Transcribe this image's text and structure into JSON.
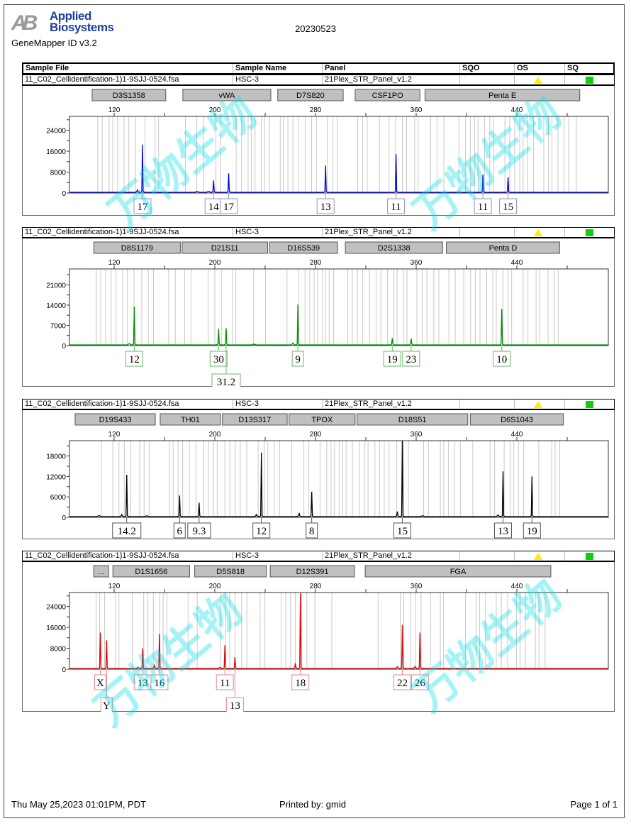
{
  "header": {
    "logo_mark": "AB",
    "logo_line1": "Applied",
    "logo_line2": "Biosystems",
    "product": "GeneMapper ID v3.2",
    "run_name": "20230523"
  },
  "table": {
    "columns": [
      "Sample File",
      "Sample Name",
      "Panel",
      "SQO",
      "OS",
      "SQ"
    ]
  },
  "sample": {
    "file": "11_C02_Cellidentification-1)1-9SJJ-0524.fsa",
    "name": "HSC-3",
    "panel": "21Plex_STR_Panel_v1.2",
    "os_status": "warning",
    "sq_status": "pass"
  },
  "watermark": "万物生物",
  "footer": {
    "printed_at": "Thu May 25,2023 01:01PM, PDT",
    "printed_by": "Printed by: gmid",
    "page": "Page 1 of 1"
  },
  "colors": {
    "blue": "#0000cc",
    "green": "#008c00",
    "black": "#000000",
    "red": "#e00000",
    "os_warning": "#ffee00",
    "sq_pass": "#11cc11"
  },
  "chart_data": [
    {
      "type": "line",
      "dye": "blue",
      "color": "#0000cc",
      "box_color": "#8f8fd8",
      "x_range": [
        84.5,
        512.7
      ],
      "x_ticks": [
        120,
        200,
        280,
        360,
        440
      ],
      "y_max": 29300,
      "y_ticks": [
        0,
        8000,
        16000,
        24000
      ],
      "markers": [
        {
          "name": "D3S1358",
          "range": [
            102.5,
            161
          ]
        },
        {
          "name": "vWA",
          "range": [
            174.6,
            244.5
          ]
        },
        {
          "name": "D7S820",
          "range": [
            250,
            302
          ]
        },
        {
          "name": "CSF1PO",
          "range": [
            311.5,
            363
          ]
        },
        {
          "name": "Penta E",
          "range": [
            367,
            490
          ]
        }
      ],
      "peaks": [
        {
          "allele": "17",
          "size": 142.5,
          "height": 18500,
          "row": 1
        },
        {
          "allele": "14",
          "size": 199,
          "height": 4800,
          "row": 1
        },
        {
          "allele": "17",
          "size": 211,
          "height": 7500,
          "row": 1
        },
        {
          "allele": "13",
          "size": 288,
          "height": 10500,
          "row": 1
        },
        {
          "allele": "11",
          "size": 344,
          "height": 14800,
          "row": 1
        },
        {
          "allele": "11",
          "size": 413,
          "height": 7000,
          "row": 1
        },
        {
          "allele": "15",
          "size": 433,
          "height": 6000,
          "row": 1
        }
      ],
      "minor": [
        {
          "size": 138.5,
          "height": 1200
        },
        {
          "size": 195,
          "height": 600
        },
        {
          "size": 186,
          "height": 500
        }
      ]
    },
    {
      "type": "line",
      "dye": "green",
      "color": "#008c00",
      "box_color": "#66bb66",
      "x_range": [
        84.5,
        512.7
      ],
      "x_ticks": [
        120,
        200,
        280,
        360,
        440
      ],
      "y_max": 26500,
      "y_ticks": [
        0,
        7000,
        14000,
        21000
      ],
      "markers": [
        {
          "name": "D8S1179",
          "range": [
            103.8,
            172.6
          ]
        },
        {
          "name": "D21S11",
          "range": [
            174,
            242
          ]
        },
        {
          "name": "D16S539",
          "range": [
            243.5,
            297.5
          ]
        },
        {
          "name": "D2S1338",
          "range": [
            303.7,
            381
          ]
        },
        {
          "name": "Penta D",
          "range": [
            384,
            474
          ]
        }
      ],
      "peaks": [
        {
          "allele": "12",
          "size": 136,
          "height": 13500,
          "row": 1
        },
        {
          "allele": "30",
          "size": 203,
          "height": 5800,
          "row": 1
        },
        {
          "allele": "31.2",
          "size": 209,
          "height": 6000,
          "row": 2
        },
        {
          "allele": "9",
          "size": 266,
          "height": 14200,
          "row": 1
        },
        {
          "allele": "19",
          "size": 341,
          "height": 2600,
          "row": 1
        },
        {
          "allele": "23",
          "size": 356,
          "height": 2400,
          "row": 1
        },
        {
          "allele": "10",
          "size": 428,
          "height": 12700,
          "row": 1
        }
      ],
      "minor": [
        {
          "size": 132,
          "height": 700
        },
        {
          "size": 262,
          "height": 900
        },
        {
          "size": 231,
          "height": 400
        }
      ]
    },
    {
      "type": "line",
      "dye": "black",
      "color": "#000000",
      "box_color": "#555555",
      "x_range": [
        84.5,
        512.7
      ],
      "x_ticks": [
        120,
        200,
        280,
        360,
        440
      ],
      "y_max": 22500,
      "y_ticks": [
        0,
        6000,
        12000,
        18000
      ],
      "markers": [
        {
          "name": "D19S433",
          "range": [
            89,
            152.7
          ]
        },
        {
          "name": "TH01",
          "range": [
            156.6,
            204.5
          ]
        },
        {
          "name": "D13S317",
          "range": [
            206,
            257.5
          ]
        },
        {
          "name": "TPOX",
          "range": [
            259,
            311.5
          ]
        },
        {
          "name": "D18S51",
          "range": [
            313,
            401
          ]
        },
        {
          "name": "D6S1043",
          "range": [
            403,
            477
          ]
        }
      ],
      "peaks": [
        {
          "allele": "14.2",
          "size": 130,
          "height": 12500,
          "row": 1
        },
        {
          "allele": "6",
          "size": 172,
          "height": 6400,
          "row": 1
        },
        {
          "allele": "9.3",
          "size": 187.5,
          "height": 4300,
          "row": 1
        },
        {
          "allele": "12",
          "size": 237,
          "height": 19000,
          "row": 1
        },
        {
          "allele": "8",
          "size": 277,
          "height": 7500,
          "row": 1
        },
        {
          "allele": "15",
          "size": 349,
          "height": 22500,
          "row": 1
        },
        {
          "allele": "13",
          "size": 429,
          "height": 13500,
          "row": 1
        },
        {
          "allele": "19",
          "size": 452,
          "height": 12000,
          "row": 1
        }
      ],
      "minor": [
        {
          "size": 126,
          "height": 800
        },
        {
          "size": 108,
          "height": 500
        },
        {
          "size": 146,
          "height": 400
        },
        {
          "size": 233,
          "height": 800
        },
        {
          "size": 267,
          "height": 1300
        },
        {
          "size": 345,
          "height": 1700
        },
        {
          "size": 425,
          "height": 700
        },
        {
          "size": 365,
          "height": 400
        }
      ]
    },
    {
      "type": "line",
      "dye": "red",
      "color": "#e00000",
      "box_color": "#e08a8a",
      "x_range": [
        84.5,
        512.7
      ],
      "x_ticks": [
        120,
        200,
        280,
        360,
        440
      ],
      "y_max": 29300,
      "y_ticks": [
        0,
        8000,
        16000,
        24000
      ],
      "markers": [
        {
          "name": "...",
          "range": [
            103.7,
            115.6
          ]
        },
        {
          "name": "D1S1656",
          "range": [
            119,
            180
          ]
        },
        {
          "name": "D5S818",
          "range": [
            184,
            241
          ]
        },
        {
          "name": "D12S391",
          "range": [
            244,
            311
          ]
        },
        {
          "name": "FGA",
          "range": [
            319.5,
            467
          ]
        }
      ],
      "peaks": [
        {
          "allele": "X",
          "size": 109,
          "height": 14000,
          "row": 1
        },
        {
          "allele": "Y",
          "size": 114,
          "height": 11000,
          "row": 2
        },
        {
          "allele": "13",
          "size": 142.7,
          "height": 8000,
          "row": 1
        },
        {
          "allele": "16",
          "size": 156,
          "height": 13500,
          "row": 1
        },
        {
          "allele": "11",
          "size": 208,
          "height": 9200,
          "row": 1
        },
        {
          "allele": "13",
          "size": 216,
          "height": 4600,
          "row": 2
        },
        {
          "allele": "18",
          "size": 268,
          "height": 29000,
          "row": 1
        },
        {
          "allele": "22",
          "size": 349,
          "height": 17000,
          "row": 1
        },
        {
          "allele": "26",
          "size": 363,
          "height": 14000,
          "row": 1
        }
      ],
      "minor": [
        {
          "size": 152,
          "height": 1500
        },
        {
          "size": 139,
          "height": 700
        },
        {
          "size": 204,
          "height": 700
        },
        {
          "size": 264,
          "height": 2300
        },
        {
          "size": 345,
          "height": 1000
        },
        {
          "size": 359,
          "height": 1000
        }
      ]
    }
  ]
}
